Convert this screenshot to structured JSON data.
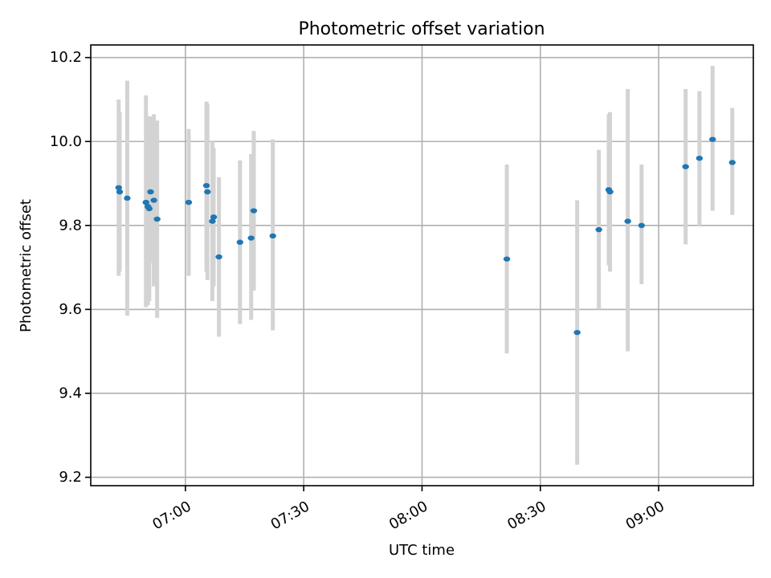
{
  "chart_data": {
    "type": "scatter",
    "title": "Photometric offset variation",
    "xlabel": "UTC time",
    "ylabel": "Photometric offset",
    "x_type": "time",
    "xlim": [
      "06:36",
      "09:24"
    ],
    "ylim": [
      9.18,
      10.23
    ],
    "xticks": [
      "07:00",
      "07:30",
      "08:00",
      "08:30",
      "09:00"
    ],
    "yticks": [
      9.2,
      9.4,
      9.6,
      9.8,
      10.0,
      10.2
    ],
    "ytick_labels": [
      "9.2",
      "9.4",
      "9.6",
      "9.8",
      "10.0",
      "10.2"
    ],
    "grid": true,
    "colors": {
      "marker": "#1f77b4",
      "errorbar": "#d3d3d3"
    },
    "points": [
      {
        "x": "06:43:05",
        "y": 9.89,
        "ylow": 9.68,
        "yhigh": 10.1
      },
      {
        "x": "06:43:20",
        "y": 9.88,
        "ylow": 9.69,
        "yhigh": 10.07
      },
      {
        "x": "06:45:15",
        "y": 9.865,
        "ylow": 9.585,
        "yhigh": 10.145
      },
      {
        "x": "06:50:00",
        "y": 9.855,
        "ylow": 9.605,
        "yhigh": 10.11
      },
      {
        "x": "06:50:30",
        "y": 9.845,
        "ylow": 9.61,
        "yhigh": 10.06
      },
      {
        "x": "06:50:50",
        "y": 9.84,
        "ylow": 9.62,
        "yhigh": 10.055
      },
      {
        "x": "06:51:10",
        "y": 9.88,
        "ylow": 9.71,
        "yhigh": 10.06
      },
      {
        "x": "06:52:00",
        "y": 9.86,
        "ylow": 9.655,
        "yhigh": 10.065
      },
      {
        "x": "06:52:50",
        "y": 9.815,
        "ylow": 9.58,
        "yhigh": 10.05
      },
      {
        "x": "07:00:50",
        "y": 9.855,
        "ylow": 9.68,
        "yhigh": 10.03
      },
      {
        "x": "07:05:20",
        "y": 9.895,
        "ylow": 9.69,
        "yhigh": 10.095
      },
      {
        "x": "07:05:35",
        "y": 9.88,
        "ylow": 9.67,
        "yhigh": 10.09
      },
      {
        "x": "07:06:50",
        "y": 9.81,
        "ylow": 9.62,
        "yhigh": 10.0
      },
      {
        "x": "07:07:10",
        "y": 9.82,
        "ylow": 9.655,
        "yhigh": 9.985
      },
      {
        "x": "07:08:30",
        "y": 9.725,
        "ylow": 9.535,
        "yhigh": 9.915
      },
      {
        "x": "07:13:50",
        "y": 9.76,
        "ylow": 9.565,
        "yhigh": 9.955
      },
      {
        "x": "07:16:40",
        "y": 9.77,
        "ylow": 9.575,
        "yhigh": 9.97
      },
      {
        "x": "07:17:20",
        "y": 9.835,
        "ylow": 9.645,
        "yhigh": 10.025
      },
      {
        "x": "07:22:10",
        "y": 9.775,
        "ylow": 9.55,
        "yhigh": 10.005
      },
      {
        "x": "08:21:30",
        "y": 9.72,
        "ylow": 9.495,
        "yhigh": 9.945
      },
      {
        "x": "08:39:20",
        "y": 9.545,
        "ylow": 9.23,
        "yhigh": 9.86
      },
      {
        "x": "08:44:50",
        "y": 9.79,
        "ylow": 9.6,
        "yhigh": 9.98
      },
      {
        "x": "08:47:20",
        "y": 9.885,
        "ylow": 9.705,
        "yhigh": 10.065
      },
      {
        "x": "08:47:40",
        "y": 9.88,
        "ylow": 9.69,
        "yhigh": 10.07
      },
      {
        "x": "08:52:10",
        "y": 9.81,
        "ylow": 9.5,
        "yhigh": 10.125
      },
      {
        "x": "08:55:40",
        "y": 9.8,
        "ylow": 9.66,
        "yhigh": 9.945
      },
      {
        "x": "09:06:50",
        "y": 9.94,
        "ylow": 9.755,
        "yhigh": 10.125
      },
      {
        "x": "09:10:20",
        "y": 9.96,
        "ylow": 9.8,
        "yhigh": 10.12
      },
      {
        "x": "09:13:40",
        "y": 10.005,
        "ylow": 9.835,
        "yhigh": 10.18
      },
      {
        "x": "09:18:40",
        "y": 9.95,
        "ylow": 9.825,
        "yhigh": 10.08
      }
    ]
  }
}
